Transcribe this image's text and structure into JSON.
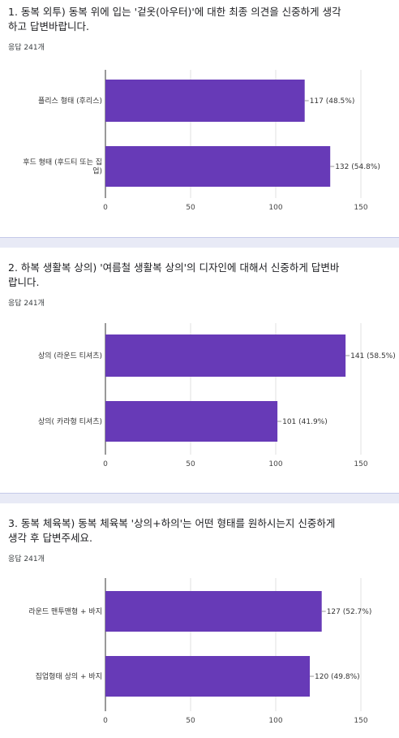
{
  "colors": {
    "bar": "#673ab7",
    "grid": "#e0e0e0",
    "separator": "#e8eaf6"
  },
  "questions": [
    {
      "title": "1. 동복 외투) 동복 위에 입는 '겉옷(아우터)'에 대한 최종 의견을 신중하게 생각하고 답변바랍니다.",
      "title_lines": [
        "1. 동복 외투) 동복 위에 입는 '겉옷(아우터)'에 대한 최종 의견을 신중하게 생각",
        "하고 답변바랍니다."
      ],
      "count": "응답 241개"
    },
    {
      "title": "2. 하복 생활복 상의) '여름철 생활복 상의'의 디자인에 대해서 신중하게 답변바랍니다.",
      "title_lines": [
        "2. 하복 생활복 상의) '여름철 생활복 상의'의 디자인에 대해서 신중하게 답변바",
        "랍니다."
      ],
      "count": "응답 241개"
    },
    {
      "title": "3. 동복 체육복) 동복 체육복 '상의+하의'는 어떤 형태를 원하시는지 신중하게 생각 후 답변주세요.",
      "title_lines": [
        "3. 동복 체육복) 동복 체육복 '상의+하의'는 어떤 형태를 원하시는지 신중하게",
        "생각 후 답변주세요."
      ],
      "count": "응답 241개"
    }
  ],
  "chart_data": [
    {
      "type": "bar",
      "orientation": "horizontal",
      "categories": [
        [
          "플리스 형태 (후리스)"
        ],
        [
          "후드 형태 (후드티 또는 집",
          "업)"
        ]
      ],
      "values": [
        117,
        132
      ],
      "data_labels": [
        "117 (48.5%)",
        "132 (54.8%)"
      ],
      "xlim": [
        0,
        150
      ],
      "xticks": [
        0,
        50,
        100,
        150
      ],
      "grid": true
    },
    {
      "type": "bar",
      "orientation": "horizontal",
      "categories": [
        [
          "상의 (라운드 티셔츠)"
        ],
        [
          "상의( 카라형 티셔츠)"
        ]
      ],
      "values": [
        141,
        101
      ],
      "data_labels": [
        "141 (58.5%)",
        "101 (41.9%)"
      ],
      "xlim": [
        0,
        150
      ],
      "xticks": [
        0,
        50,
        100,
        150
      ],
      "grid": true
    },
    {
      "type": "bar",
      "orientation": "horizontal",
      "categories": [
        [
          "라운드 맨투맨형 + 바지"
        ],
        [
          "집업형태 상의 + 바지"
        ]
      ],
      "values": [
        127,
        120
      ],
      "data_labels": [
        "127 (52.7%)",
        "120 (49.8%)"
      ],
      "xlim": [
        0,
        150
      ],
      "xticks": [
        0,
        50,
        100,
        150
      ],
      "grid": true
    }
  ]
}
